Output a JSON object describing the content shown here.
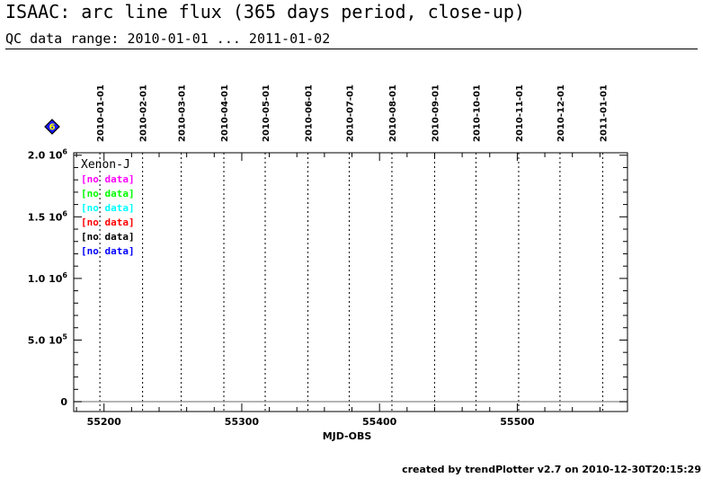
{
  "header": {
    "title": "ISAAC: arc line flux (365 days period, close-up)",
    "subtitle": "QC data range: 2010-01-01 ... 2011-01-02"
  },
  "badge": {
    "label": "6",
    "icon": "blue-diamond-icon",
    "fill": "#1a1aff",
    "border": "#000000",
    "text_color": "#ffff00"
  },
  "footer": {
    "text": "created by trendPlotter v2.7 on 2010-12-30T20:15:29"
  },
  "chart_data": {
    "type": "scatter",
    "xlabel": "MJD-OBS",
    "ylabel": "",
    "xlim": [
      55178,
      55580
    ],
    "ylim": [
      -80000,
      2020000
    ],
    "x_ticks": [
      55200,
      55300,
      55400,
      55500
    ],
    "y_ticks": [
      {
        "value": 0,
        "label": "0",
        "exp": ""
      },
      {
        "value": 500000,
        "label": "5.0 10",
        "exp": "5"
      },
      {
        "value": 1000000,
        "label": "1.0 10",
        "exp": "6"
      },
      {
        "value": 1500000,
        "label": "1.5 10",
        "exp": "6"
      },
      {
        "value": 2000000,
        "label": "2.0 10",
        "exp": "6"
      }
    ],
    "y_minor_step": 100000,
    "x_minor_step": 20,
    "zero_line": 0,
    "date_markers": [
      {
        "label": "2010-01-01",
        "mjd": 55197
      },
      {
        "label": "2010-02-01",
        "mjd": 55228
      },
      {
        "label": "2010-03-01",
        "mjd": 55256
      },
      {
        "label": "2010-04-01",
        "mjd": 55287
      },
      {
        "label": "2010-05-01",
        "mjd": 55317
      },
      {
        "label": "2010-06-01",
        "mjd": 55348
      },
      {
        "label": "2010-07-01",
        "mjd": 55378
      },
      {
        "label": "2010-08-01",
        "mjd": 55409
      },
      {
        "label": "2010-09-01",
        "mjd": 55440
      },
      {
        "label": "2010-10-01",
        "mjd": 55470
      },
      {
        "label": "2010-11-01",
        "mjd": 55501
      },
      {
        "label": "2010-12-01",
        "mjd": 55531
      },
      {
        "label": "2011-01-01",
        "mjd": 55562
      }
    ],
    "legend_title": "Xenon-J",
    "legend_placement": "top-left",
    "series": [
      {
        "label": "[no data]",
        "color": "#ff00ff",
        "values": []
      },
      {
        "label": "[no data]",
        "color": "#00ff00",
        "values": []
      },
      {
        "label": "[no data]",
        "color": "#00ffff",
        "values": []
      },
      {
        "label": "[no data]",
        "color": "#ff0000",
        "values": []
      },
      {
        "label": "[no data]",
        "color": "#000000",
        "values": []
      },
      {
        "label": "[no data]",
        "color": "#0000ff",
        "values": []
      }
    ]
  }
}
